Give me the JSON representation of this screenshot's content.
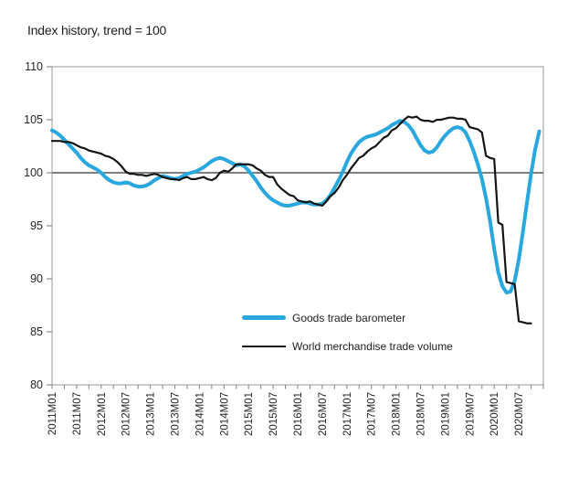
{
  "title": "Index history, trend = 100",
  "colors": {
    "background": "#ffffff",
    "border": "#ababab",
    "tick": "#8c8c8c",
    "reference_line": "#7f7f7f",
    "text": "#262626"
  },
  "chart_data": {
    "type": "line",
    "title": "Index history, trend = 100",
    "xlabel": "",
    "ylabel": "",
    "ylim": [
      80,
      110
    ],
    "y_ticks": [
      110,
      105,
      100,
      95,
      90,
      85,
      80
    ],
    "reference_value": 100,
    "grid": false,
    "legend_position": "inside-bottom-center",
    "x_unit": "month",
    "x_start": "2011M01",
    "x_domain_months": 120,
    "x_minor_tick_every_months": 3,
    "x_tick_label_every_months": 6,
    "x_tick_labels": [
      "2011M01",
      "2011M07",
      "2012M01",
      "2012M07",
      "2013M01",
      "2013M07",
      "2014M01",
      "2014M07",
      "2015M01",
      "2015M07",
      "2016M01",
      "2016M07",
      "2017M01",
      "2017M07",
      "2018M01",
      "2018M07",
      "2019M01",
      "2019M07",
      "2020M01",
      "2020M07"
    ],
    "series": [
      {
        "name": "Goods trade barometer",
        "color": "#29A8E0",
        "width": 4,
        "start_month": "2011M01",
        "values": [
          104.0,
          103.8,
          103.5,
          103.1,
          102.7,
          102.3,
          101.9,
          101.4,
          101.0,
          100.7,
          100.5,
          100.3,
          100.0,
          99.6,
          99.3,
          99.1,
          99.0,
          99.0,
          99.1,
          99.0,
          98.8,
          98.7,
          98.7,
          98.8,
          99.0,
          99.3,
          99.5,
          99.7,
          99.6,
          99.5,
          99.4,
          99.5,
          99.7,
          99.9,
          100.0,
          100.1,
          100.3,
          100.5,
          100.8,
          101.1,
          101.3,
          101.4,
          101.3,
          101.1,
          100.9,
          100.7,
          100.8,
          100.6,
          100.2,
          99.7,
          99.2,
          98.6,
          98.1,
          97.7,
          97.4,
          97.2,
          97.0,
          96.9,
          96.9,
          97.0,
          97.1,
          97.2,
          97.2,
          97.1,
          97.0,
          97.0,
          97.1,
          97.4,
          97.9,
          98.6,
          99.3,
          100.1,
          101.0,
          101.8,
          102.4,
          102.9,
          103.2,
          103.4,
          103.5,
          103.6,
          103.8,
          104.0,
          104.2,
          104.5,
          104.7,
          104.9,
          104.8,
          104.5,
          104.0,
          103.3,
          102.6,
          102.1,
          101.9,
          102.0,
          102.4,
          103.0,
          103.5,
          103.9,
          104.2,
          104.3,
          104.2,
          103.8,
          103.0,
          102.0,
          100.8,
          99.4,
          97.6,
          95.4,
          92.8,
          90.6,
          89.3,
          88.7,
          88.8,
          89.8,
          91.8,
          94.4,
          97.2,
          99.9,
          102.2,
          103.9
        ]
      },
      {
        "name": "World merchandise trade volume",
        "color": "#151515",
        "width": 2.2,
        "start_month": "2011M01",
        "values": [
          103.0,
          103.0,
          103.0,
          102.9,
          102.9,
          102.8,
          102.6,
          102.4,
          102.3,
          102.1,
          102.0,
          101.9,
          101.8,
          101.6,
          101.5,
          101.3,
          101.0,
          100.6,
          100.1,
          99.9,
          99.9,
          99.8,
          99.8,
          99.7,
          99.8,
          99.9,
          99.8,
          99.6,
          99.5,
          99.4,
          99.4,
          99.3,
          99.5,
          99.6,
          99.4,
          99.4,
          99.5,
          99.6,
          99.4,
          99.3,
          99.5,
          100.0,
          100.2,
          100.1,
          100.4,
          100.8,
          100.8,
          100.8,
          100.8,
          100.7,
          100.4,
          100.2,
          99.8,
          99.6,
          99.6,
          98.9,
          98.5,
          98.2,
          97.9,
          97.8,
          97.4,
          97.3,
          97.2,
          97.3,
          97.1,
          97.0,
          96.9,
          97.3,
          97.8,
          98.1,
          98.6,
          99.3,
          99.8,
          100.4,
          100.9,
          101.4,
          101.6,
          102.0,
          102.3,
          102.5,
          102.9,
          103.3,
          103.5,
          104.0,
          104.2,
          104.6,
          105.0,
          105.3,
          105.2,
          105.3,
          105.0,
          104.9,
          104.9,
          104.8,
          105.0,
          105.0,
          105.1,
          105.2,
          105.2,
          105.1,
          105.1,
          105.0,
          104.3,
          104.2,
          104.1,
          103.8,
          101.6,
          101.4,
          101.3,
          95.3,
          95.1,
          89.7,
          89.6,
          89.5,
          86.0,
          85.9,
          85.8,
          85.8
        ]
      }
    ]
  }
}
